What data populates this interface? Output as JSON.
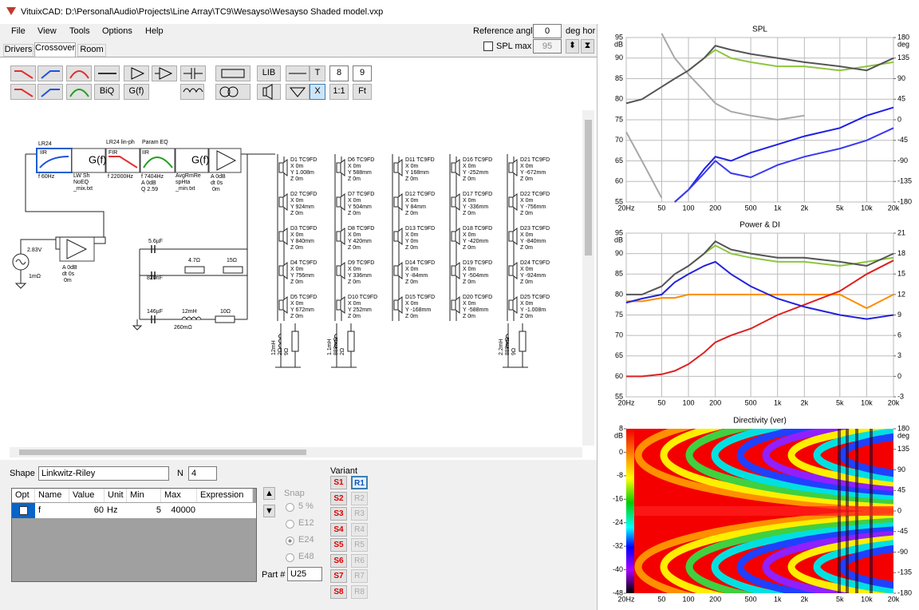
{
  "window": {
    "title": "VituixCAD: D:\\Personal\\Audio\\Projects\\Line Array\\TC9\\Wesayso\\Wesayso Shaded model.vxp"
  },
  "menu": [
    "File",
    "View",
    "Tools",
    "Options",
    "Help"
  ],
  "tabs": [
    "Drivers",
    "Crossover",
    "Room"
  ],
  "reference": {
    "label": "Reference angle",
    "angle": "0",
    "unit": "deg hor",
    "spl_max_label": "SPL max",
    "spl_max": "95"
  },
  "toolbar": {
    "lib": "LIB",
    "t": "T",
    "box1": "8",
    "box2": "9",
    "biq": "BiQ",
    "gf": "G(f)",
    "x": "X",
    "ratio": "1:1",
    "ft": "Ft"
  },
  "schematic": {
    "labels": [
      "LR24",
      "IIR",
      "f  60Hz",
      "G(f)",
      "LW Sh",
      "NoEQ",
      "_mix.txt",
      "LR24 lin-ph",
      "Param EQ",
      "FIR",
      "f  22000Hz",
      "IIR",
      "f  7404Hz",
      "A  0dB",
      "Q  2.59",
      "G(f)",
      "AvgRmRe",
      "spHta",
      "_min.txt",
      "A  0dB",
      "dt 0s",
      "0m",
      "2.83V",
      "1mΩ",
      "A  0dB",
      "dt 0s",
      "0m",
      "5.6µF",
      "820nF",
      "4.7Ω",
      "15Ω",
      "146µF",
      "12mH",
      "10Ω",
      "260mΩ",
      "12mH",
      "2Ω",
      "9Ω",
      "1.1mH",
      "888mΩ",
      "2Ω",
      "2.2mH",
      "888mΩ",
      "9Ω"
    ],
    "drivers": [
      {
        "name": "D1 TC9FD",
        "x": "X 0m",
        "y": "Y 1.008m",
        "z": "Z 0m"
      },
      {
        "name": "D2 TC9FD",
        "x": "X 0m",
        "y": "Y 924mm",
        "z": "Z 0m"
      },
      {
        "name": "D3 TC9FD",
        "x": "X 0m",
        "y": "Y 840mm",
        "z": "Z 0m"
      },
      {
        "name": "D4 TC9FD",
        "x": "X 0m",
        "y": "Y 756mm",
        "z": "Z 0m"
      },
      {
        "name": "D5 TC9FD",
        "x": "X 0m",
        "y": "Y 672mm",
        "z": "Z 0m"
      },
      {
        "name": "D6 TC9FD",
        "x": "X 0m",
        "y": "Y 588mm",
        "z": "Z 0m"
      },
      {
        "name": "D7 TC9FD",
        "x": "X 0m",
        "y": "Y 504mm",
        "z": "Z 0m"
      },
      {
        "name": "D8 TC9FD",
        "x": "X 0m",
        "y": "Y 420mm",
        "z": "Z 0m"
      },
      {
        "name": "D9 TC9FD",
        "x": "X 0m",
        "y": "Y 336mm",
        "z": "Z 0m"
      },
      {
        "name": "D10 TC9FD",
        "x": "X 0m",
        "y": "Y 252mm",
        "z": "Z 0m"
      },
      {
        "name": "D11 TC9FD",
        "x": "X 0m",
        "y": "Y 168mm",
        "z": "Z 0m"
      },
      {
        "name": "D12 TC9FD",
        "x": "X 0m",
        "y": "Y 84mm",
        "z": "Z 0m"
      },
      {
        "name": "D13 TC9FD",
        "x": "X 0m",
        "y": "Y 0m",
        "z": "Z 0m"
      },
      {
        "name": "D14 TC9FD",
        "x": "X 0m",
        "y": "Y -84mm",
        "z": "Z 0m"
      },
      {
        "name": "D15 TC9FD",
        "x": "X 0m",
        "y": "Y -168mm",
        "z": "Z 0m"
      },
      {
        "name": "D16 TC9FD",
        "x": "X 0m",
        "y": "Y -252mm",
        "z": "Z 0m"
      },
      {
        "name": "D17 TC9FD",
        "x": "X 0m",
        "y": "Y -336mm",
        "z": "Z 0m"
      },
      {
        "name": "D18 TC9FD",
        "x": "X 0m",
        "y": "Y -420mm",
        "z": "Z 0m"
      },
      {
        "name": "D19 TC9FD",
        "x": "X 0m",
        "y": "Y -504mm",
        "z": "Z 0m"
      },
      {
        "name": "D20 TC9FD",
        "x": "X 0m",
        "y": "Y -588mm",
        "z": "Z 0m"
      },
      {
        "name": "D21 TC9FD",
        "x": "X 0m",
        "y": "Y -672mm",
        "z": "Z 0m"
      },
      {
        "name": "D22 TC9FD",
        "x": "X 0m",
        "y": "Y -756mm",
        "z": "Z 0m"
      },
      {
        "name": "D23 TC9FD",
        "x": "X 0m",
        "y": "Y -840mm",
        "z": "Z 0m"
      },
      {
        "name": "D24 TC9FD",
        "x": "X 0m",
        "y": "Y -924mm",
        "z": "Z 0m"
      },
      {
        "name": "D25 TC9FD",
        "x": "X 0m",
        "y": "Y -1.008m",
        "z": "Z 0m"
      }
    ]
  },
  "shape": {
    "label": "Shape",
    "value": "Linkwitz-Riley",
    "n_label": "N",
    "n": "4"
  },
  "params": {
    "columns": [
      "Opt",
      "Name",
      "Value",
      "Unit",
      "Min",
      "Max",
      "Expression"
    ],
    "row": {
      "name": "f",
      "value": "60",
      "unit": "Hz",
      "min": "5",
      "max": "40000"
    }
  },
  "snap": {
    "label": "Snap",
    "options": [
      "5 %",
      "E12",
      "E24",
      "E48"
    ]
  },
  "part": {
    "label": "Part #",
    "value": "U25"
  },
  "variant": {
    "label": "Variant",
    "s": [
      "S1",
      "S2",
      "S3",
      "S4",
      "S5",
      "S6",
      "S7",
      "S8"
    ],
    "r": [
      "R1",
      "R2",
      "R3",
      "R4",
      "R5",
      "R6",
      "R7",
      "R8"
    ]
  },
  "chart_data": [
    {
      "type": "line",
      "title": "SPL",
      "ylabel": "dB",
      "y2label": "deg",
      "log_x": true,
      "grid": true,
      "xlim": [
        20,
        20000
      ],
      "xticks": [
        {
          "value": 20,
          "label": "20Hz"
        },
        50,
        100,
        200,
        500,
        {
          "value": 1000,
          "label": "1k"
        },
        {
          "value": 2000,
          "label": "2k"
        },
        {
          "value": 5000,
          "label": "5k"
        },
        {
          "value": 10000,
          "label": "10k"
        },
        {
          "value": 20000,
          "label": "20k"
        }
      ],
      "ylim": [
        55,
        95
      ],
      "yticks": [
        55,
        60,
        65,
        70,
        75,
        80,
        85,
        90,
        95
      ],
      "y2lim": [
        -180,
        180
      ],
      "y2ticks": [
        -180,
        -135,
        -90,
        -45,
        0,
        45,
        90,
        135,
        180
      ],
      "x": [
        20,
        30,
        50,
        70,
        100,
        150,
        200,
        300,
        500,
        1000,
        2000,
        5000,
        10000,
        20000
      ],
      "series": [
        {
          "color": "#a8a8a8",
          "values": [
            null,
            null,
            96,
            90,
            86,
            82,
            79,
            77,
            76,
            75,
            76,
            null,
            null,
            null
          ]
        },
        {
          "color": "#a8a8a8",
          "values": [
            72,
            65,
            56,
            null,
            null,
            null,
            null,
            null,
            null,
            null,
            null,
            null,
            null,
            null
          ]
        },
        {
          "color": "#1f1fe8",
          "values": [
            null,
            null,
            null,
            55,
            58,
            63,
            66,
            65,
            67,
            69,
            71,
            73,
            76,
            78
          ]
        },
        {
          "color": "#3a3af0",
          "values": [
            null,
            null,
            null,
            55,
            58,
            62,
            65,
            62,
            61,
            64,
            66,
            68,
            70,
            73
          ]
        },
        {
          "color": "#8dc63f",
          "values": [
            null,
            null,
            null,
            null,
            87,
            90,
            92,
            90,
            89,
            88,
            88,
            87,
            88,
            89
          ]
        },
        {
          "color": "#555555",
          "values": [
            79,
            80,
            83,
            85,
            87,
            90,
            93,
            92,
            91,
            90,
            89,
            88,
            87,
            90
          ]
        }
      ]
    },
    {
      "type": "line",
      "title": "Power & DI",
      "ylabel": "dB",
      "log_x": true,
      "grid": true,
      "xlim": [
        20,
        20000
      ],
      "xticks": [
        {
          "value": 20,
          "label": "20Hz"
        },
        50,
        100,
        200,
        500,
        {
          "value": 1000,
          "label": "1k"
        },
        {
          "value": 2000,
          "label": "2k"
        },
        {
          "value": 5000,
          "label": "5k"
        },
        {
          "value": 10000,
          "label": "10k"
        },
        {
          "value": 20000,
          "label": "20k"
        }
      ],
      "ylim": [
        55,
        95
      ],
      "yticks": [
        55,
        60,
        65,
        70,
        75,
        80,
        85,
        90,
        95
      ],
      "y2lim": [
        -3,
        21
      ],
      "y2ticks": [
        -3,
        0,
        3,
        6,
        9,
        12,
        15,
        18,
        21
      ],
      "x": [
        20,
        30,
        50,
        70,
        100,
        150,
        200,
        300,
        500,
        1000,
        2000,
        5000,
        10000,
        20000
      ],
      "series": [
        {
          "color": "#ff8c00",
          "axis": "y2",
          "values": [
            11,
            11,
            11.5,
            11.5,
            12,
            12,
            12,
            12,
            12,
            12,
            12,
            12,
            10,
            12
          ]
        },
        {
          "color": "#e02020",
          "axis": "y2",
          "values": [
            0,
            0,
            0.3,
            0.8,
            1.8,
            3.5,
            5,
            6,
            7,
            9,
            10.5,
            12.5,
            15,
            17
          ]
        },
        {
          "color": "#2222dd",
          "values": [
            78,
            79,
            80,
            83,
            85,
            87,
            88,
            85,
            82,
            79,
            77,
            75,
            74,
            75
          ]
        },
        {
          "color": "#8dc63f",
          "values": [
            null,
            null,
            null,
            null,
            87,
            90,
            92,
            90,
            89,
            88,
            88,
            87,
            88,
            89
          ]
        },
        {
          "color": "#555555",
          "values": [
            80,
            80,
            82,
            85,
            87,
            90,
            93,
            91,
            90,
            89,
            89,
            88,
            87,
            90
          ]
        }
      ]
    },
    {
      "type": "heatmap",
      "title": "Directivity (ver)",
      "ylabel": "dB",
      "y2label": "deg",
      "log_x": true,
      "xlim": [
        20,
        20000
      ],
      "xticks": [
        {
          "value": 20,
          "label": "20Hz"
        },
        50,
        100,
        200,
        500,
        {
          "value": 1000,
          "label": "1k"
        },
        {
          "value": 2000,
          "label": "2k"
        },
        {
          "value": 5000,
          "label": "5k"
        },
        {
          "value": 10000,
          "label": "10k"
        },
        {
          "value": 20000,
          "label": "20k"
        }
      ],
      "ylim": [
        -48,
        8
      ],
      "yticks": [
        -48,
        -40,
        -32,
        -24,
        -16,
        -8,
        0,
        8
      ],
      "y2lim": [
        -180,
        180
      ],
      "y2ticks": [
        -180,
        -135,
        -90,
        -45,
        0,
        45,
        90,
        135,
        180
      ]
    }
  ]
}
